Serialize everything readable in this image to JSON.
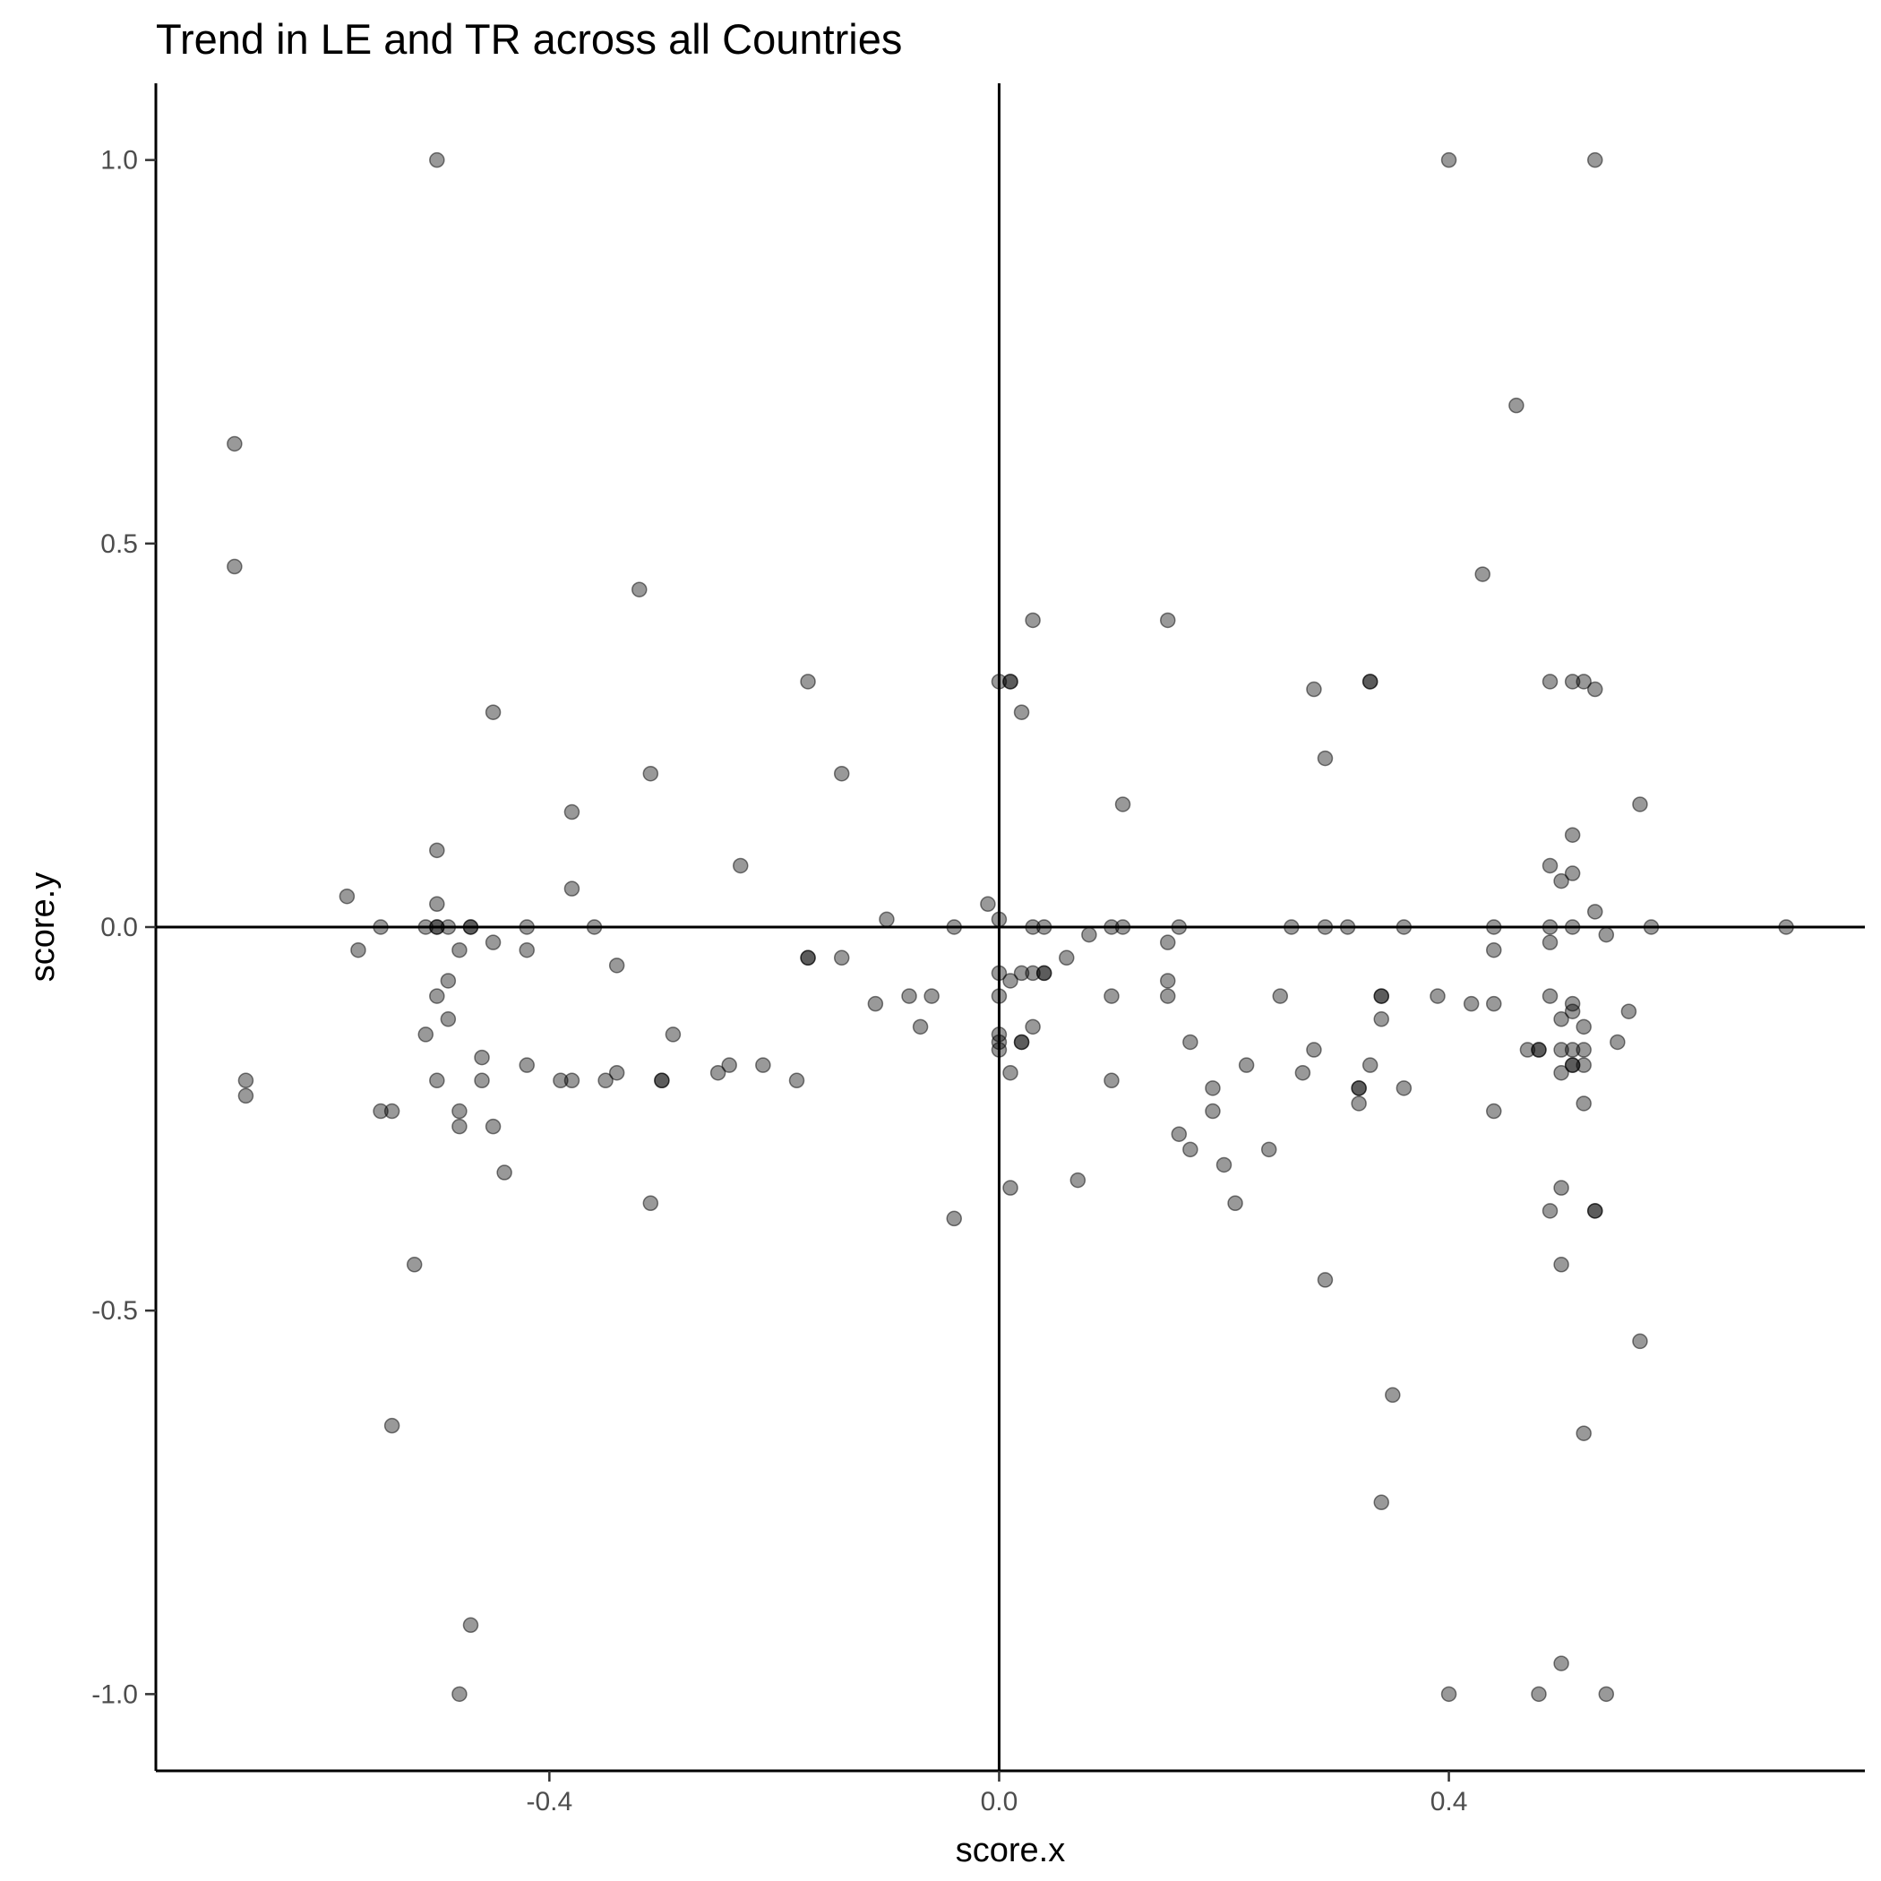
{
  "chart_data": {
    "type": "scatter",
    "title": "Trend in LE and TR across all Countries",
    "xlabel": "score.x",
    "ylabel": "score.y",
    "xlim": [
      -0.75,
      0.77
    ],
    "ylim": [
      -1.1,
      1.1
    ],
    "x_ticks": [
      -0.4,
      0.0,
      0.4
    ],
    "x_tick_labels": [
      "-0.4",
      "0.0",
      "0.4"
    ],
    "y_ticks": [
      -1.0,
      -0.5,
      0.0,
      0.5,
      1.0
    ],
    "y_tick_labels": [
      "-1.0",
      "-0.5",
      "0.0",
      "0.5",
      "1.0"
    ],
    "reference_lines": {
      "x": 0,
      "y": 0
    },
    "grid": false,
    "legend": "none",
    "point_color": "#000000",
    "point_opacity": 0.4,
    "points": [
      [
        -0.5,
        1.0
      ],
      [
        0.4,
        1.0
      ],
      [
        0.53,
        1.0
      ],
      [
        -0.68,
        0.63
      ],
      [
        0.46,
        0.68
      ],
      [
        -0.68,
        0.47
      ],
      [
        0.43,
        0.46
      ],
      [
        -0.32,
        0.44
      ],
      [
        0.03,
        0.4
      ],
      [
        0.15,
        0.4
      ],
      [
        -0.17,
        0.32
      ],
      [
        0.0,
        0.32
      ],
      [
        0.01,
        0.32
      ],
      [
        0.01,
        0.32
      ],
      [
        0.28,
        0.31
      ],
      [
        0.33,
        0.32
      ],
      [
        0.33,
        0.32
      ],
      [
        0.49,
        0.32
      ],
      [
        0.51,
        0.32
      ],
      [
        0.52,
        0.32
      ],
      [
        0.53,
        0.31
      ],
      [
        -0.45,
        0.28
      ],
      [
        0.02,
        0.28
      ],
      [
        -0.31,
        0.2
      ],
      [
        -0.14,
        0.2
      ],
      [
        0.29,
        0.22
      ],
      [
        -0.38,
        0.15
      ],
      [
        0.11,
        0.16
      ],
      [
        0.57,
        0.16
      ],
      [
        0.51,
        0.12
      ],
      [
        -0.5,
        0.1
      ],
      [
        -0.23,
        0.08
      ],
      [
        0.49,
        0.08
      ],
      [
        0.51,
        0.07
      ],
      [
        0.5,
        0.06
      ],
      [
        -0.38,
        0.05
      ],
      [
        -0.58,
        0.04
      ],
      [
        -0.5,
        0.03
      ],
      [
        -0.01,
        0.03
      ],
      [
        0.53,
        0.02
      ],
      [
        -0.1,
        0.01
      ],
      [
        0.0,
        0.01
      ],
      [
        -0.55,
        0.0
      ],
      [
        -0.51,
        0.0
      ],
      [
        -0.5,
        0.0
      ],
      [
        -0.5,
        0.0
      ],
      [
        -0.49,
        0.0
      ],
      [
        -0.47,
        0.0
      ],
      [
        -0.47,
        0.0
      ],
      [
        -0.42,
        0.0
      ],
      [
        -0.36,
        0.0
      ],
      [
        -0.04,
        0.0
      ],
      [
        0.03,
        0.0
      ],
      [
        0.04,
        0.0
      ],
      [
        0.1,
        0.0
      ],
      [
        0.11,
        0.0
      ],
      [
        0.16,
        0.0
      ],
      [
        0.26,
        0.0
      ],
      [
        0.29,
        0.0
      ],
      [
        0.31,
        0.0
      ],
      [
        0.36,
        0.0
      ],
      [
        0.44,
        0.0
      ],
      [
        0.49,
        0.0
      ],
      [
        0.51,
        0.0
      ],
      [
        0.58,
        0.0
      ],
      [
        0.7,
        0.0
      ],
      [
        0.08,
        -0.01
      ],
      [
        0.54,
        -0.01
      ],
      [
        0.15,
        -0.02
      ],
      [
        0.49,
        -0.02
      ],
      [
        -0.45,
        -0.02
      ],
      [
        -0.57,
        -0.03
      ],
      [
        -0.48,
        -0.03
      ],
      [
        -0.42,
        -0.03
      ],
      [
        0.44,
        -0.03
      ],
      [
        -0.17,
        -0.04
      ],
      [
        -0.17,
        -0.04
      ],
      [
        -0.14,
        -0.04
      ],
      [
        0.06,
        -0.04
      ],
      [
        -0.34,
        -0.05
      ],
      [
        0.0,
        -0.06
      ],
      [
        0.02,
        -0.06
      ],
      [
        0.03,
        -0.06
      ],
      [
        0.04,
        -0.06
      ],
      [
        0.04,
        -0.06
      ],
      [
        -0.49,
        -0.07
      ],
      [
        0.01,
        -0.07
      ],
      [
        0.15,
        -0.07
      ],
      [
        -0.5,
        -0.09
      ],
      [
        -0.08,
        -0.09
      ],
      [
        -0.06,
        -0.09
      ],
      [
        0.0,
        -0.09
      ],
      [
        0.1,
        -0.09
      ],
      [
        0.15,
        -0.09
      ],
      [
        0.25,
        -0.09
      ],
      [
        0.34,
        -0.09
      ],
      [
        0.34,
        -0.09
      ],
      [
        0.39,
        -0.09
      ],
      [
        0.49,
        -0.09
      ],
      [
        -0.11,
        -0.1
      ],
      [
        0.42,
        -0.1
      ],
      [
        0.44,
        -0.1
      ],
      [
        0.51,
        -0.1
      ],
      [
        0.51,
        -0.11
      ],
      [
        0.56,
        -0.11
      ],
      [
        -0.49,
        -0.12
      ],
      [
        0.34,
        -0.12
      ],
      [
        0.5,
        -0.12
      ],
      [
        -0.07,
        -0.13
      ],
      [
        0.03,
        -0.13
      ],
      [
        0.52,
        -0.13
      ],
      [
        -0.51,
        -0.14
      ],
      [
        -0.29,
        -0.14
      ],
      [
        0.0,
        -0.14
      ],
      [
        0.0,
        -0.15
      ],
      [
        0.02,
        -0.15
      ],
      [
        0.02,
        -0.15
      ],
      [
        0.17,
        -0.15
      ],
      [
        0.55,
        -0.15
      ],
      [
        0.0,
        -0.16
      ],
      [
        0.28,
        -0.16
      ],
      [
        0.47,
        -0.16
      ],
      [
        0.48,
        -0.16
      ],
      [
        0.48,
        -0.16
      ],
      [
        0.5,
        -0.16
      ],
      [
        0.51,
        -0.16
      ],
      [
        0.52,
        -0.16
      ],
      [
        -0.46,
        -0.17
      ],
      [
        -0.42,
        -0.18
      ],
      [
        -0.24,
        -0.18
      ],
      [
        -0.21,
        -0.18
      ],
      [
        0.22,
        -0.18
      ],
      [
        0.33,
        -0.18
      ],
      [
        0.51,
        -0.18
      ],
      [
        0.51,
        -0.18
      ],
      [
        0.52,
        -0.18
      ],
      [
        -0.25,
        -0.19
      ],
      [
        -0.34,
        -0.19
      ],
      [
        0.01,
        -0.19
      ],
      [
        0.27,
        -0.19
      ],
      [
        0.5,
        -0.19
      ],
      [
        -0.67,
        -0.2
      ],
      [
        -0.5,
        -0.2
      ],
      [
        -0.46,
        -0.2
      ],
      [
        -0.39,
        -0.2
      ],
      [
        -0.38,
        -0.2
      ],
      [
        -0.35,
        -0.2
      ],
      [
        -0.3,
        -0.2
      ],
      [
        -0.3,
        -0.2
      ],
      [
        -0.18,
        -0.2
      ],
      [
        0.1,
        -0.2
      ],
      [
        0.19,
        -0.21
      ],
      [
        0.32,
        -0.21
      ],
      [
        0.32,
        -0.21
      ],
      [
        0.36,
        -0.21
      ],
      [
        -0.67,
        -0.22
      ],
      [
        0.32,
        -0.23
      ],
      [
        0.52,
        -0.23
      ],
      [
        -0.55,
        -0.24
      ],
      [
        -0.54,
        -0.24
      ],
      [
        -0.48,
        -0.24
      ],
      [
        0.19,
        -0.24
      ],
      [
        0.44,
        -0.24
      ],
      [
        -0.48,
        -0.26
      ],
      [
        -0.45,
        -0.26
      ],
      [
        0.16,
        -0.27
      ],
      [
        0.17,
        -0.29
      ],
      [
        0.24,
        -0.29
      ],
      [
        0.2,
        -0.31
      ],
      [
        -0.44,
        -0.32
      ],
      [
        0.07,
        -0.33
      ],
      [
        0.01,
        -0.34
      ],
      [
        0.5,
        -0.34
      ],
      [
        -0.31,
        -0.36
      ],
      [
        0.21,
        -0.36
      ],
      [
        0.49,
        -0.37
      ],
      [
        0.53,
        -0.37
      ],
      [
        0.53,
        -0.37
      ],
      [
        -0.04,
        -0.38
      ],
      [
        -0.52,
        -0.44
      ],
      [
        0.5,
        -0.44
      ],
      [
        0.29,
        -0.46
      ],
      [
        0.57,
        -0.54
      ],
      [
        0.35,
        -0.61
      ],
      [
        -0.54,
        -0.65
      ],
      [
        0.52,
        -0.66
      ],
      [
        0.34,
        -0.75
      ],
      [
        -0.47,
        -0.91
      ],
      [
        0.5,
        -0.96
      ],
      [
        -0.48,
        -1.0
      ],
      [
        0.4,
        -1.0
      ],
      [
        0.48,
        -1.0
      ],
      [
        0.54,
        -1.0
      ]
    ]
  }
}
